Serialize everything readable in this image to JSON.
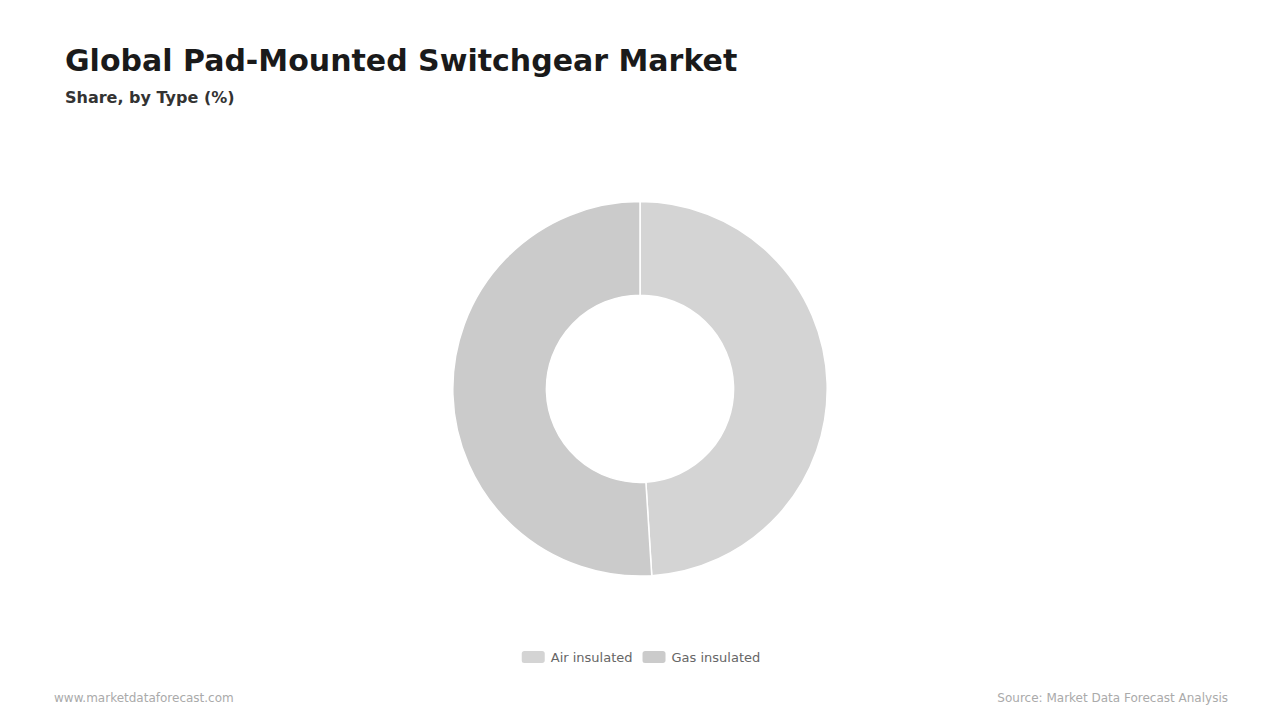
{
  "chart_data": {
    "type": "donut",
    "title": "Global Pad-Mounted Switchgear Market",
    "subtitle": "Share, by Type (%)",
    "categories": [
      "Air insulated",
      "Gas insulated"
    ],
    "values": [
      49,
      51
    ],
    "colors": [
      "#d4d4d4",
      "#cbcbcb"
    ],
    "legend": "bottom",
    "annotations": [
      "www.marketdataforecast.com",
      "Source: Market Data Forecast Analysis"
    ]
  }
}
